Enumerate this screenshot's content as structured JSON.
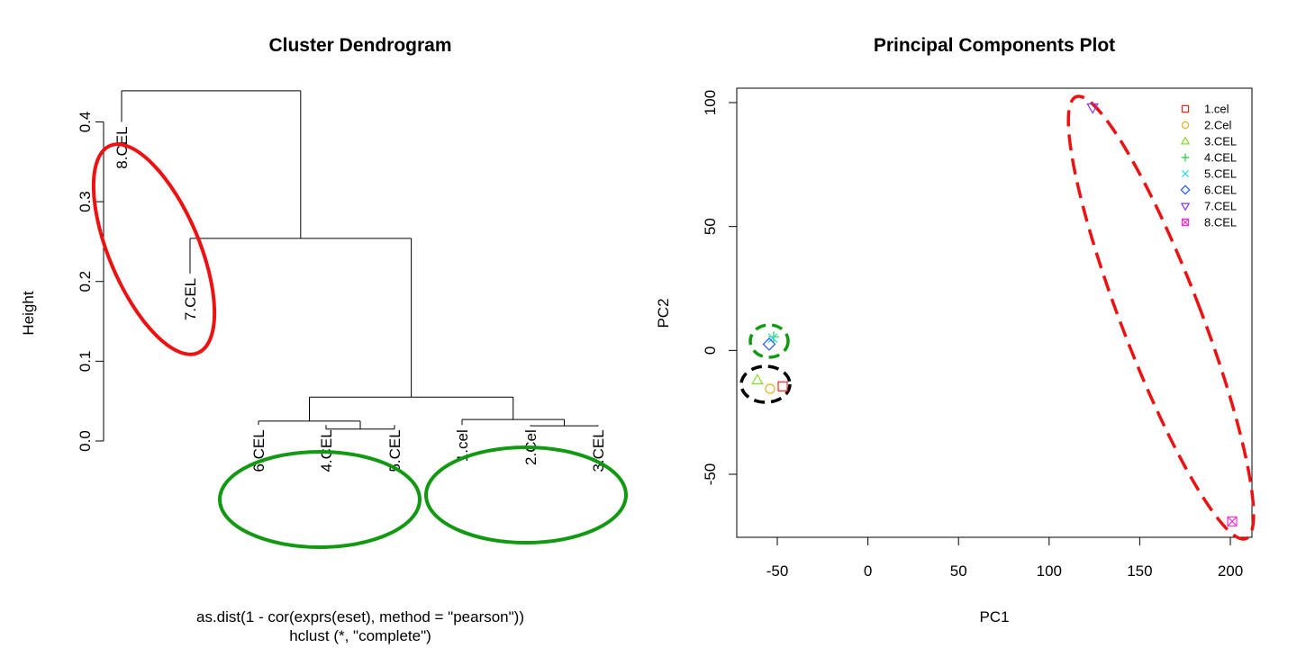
{
  "chart_data": [
    {
      "type": "dendrogram",
      "title": "Cluster Dendrogram",
      "ylabel": "Height",
      "xlabel": "as.dist(1 - cor(exprs(eset), method = \"pearson\"))",
      "sublabel": "hclust (*, \"complete\")",
      "ylim": [
        0,
        0.44
      ],
      "yticks": [
        0.0,
        0.1,
        0.2,
        0.3,
        0.4
      ],
      "ytick_labels": [
        "0.0",
        "0.1",
        "0.2",
        "0.3",
        "0.4"
      ],
      "leaves": [
        "8.CEL",
        "7.CEL",
        "6.CEL",
        "4.CEL",
        "5.CEL",
        "1.cel",
        "2.Cel",
        "3.CEL"
      ],
      "leaf_heights": [
        0.4,
        0.21,
        0.02,
        0.02,
        0.02,
        0.02,
        0.02,
        0.02
      ],
      "merges": [
        {
          "a": "4.CEL",
          "b": "5.CEL",
          "height": 0.015
        },
        {
          "a": "2.Cel",
          "b": "3.CEL",
          "height": 0.019
        },
        {
          "a": "6.CEL",
          "b": "(4.CEL,5.CEL)",
          "height": 0.025
        },
        {
          "a": "1.cel",
          "b": "(2.Cel,3.CEL)",
          "height": 0.027
        },
        {
          "a": "(6,4,5)",
          "b": "(1,2,3)",
          "height": 0.055
        },
        {
          "a": "7.CEL",
          "b": "(6,4,5,1,2,3)",
          "height": 0.254
        },
        {
          "a": "8.CEL",
          "b": "(7,6,4,5,1,2,3)",
          "height": 0.439
        }
      ],
      "annotations": [
        {
          "type": "ellipse",
          "color": "#ee1111",
          "style": "solid",
          "members": [
            "8.CEL",
            "7.CEL"
          ]
        },
        {
          "type": "ellipse",
          "color": "#119911",
          "style": "solid",
          "members": [
            "6.CEL",
            "4.CEL",
            "5.CEL"
          ]
        },
        {
          "type": "ellipse",
          "color": "#119911",
          "style": "solid",
          "members": [
            "1.cel",
            "2.Cel",
            "3.CEL"
          ]
        }
      ]
    },
    {
      "type": "scatter",
      "title": "Principal Components Plot",
      "xlabel": "PC1",
      "ylabel": "PC2",
      "xlim": [
        -72,
        210
      ],
      "ylim": [
        -75,
        106
      ],
      "xticks": [
        -50,
        0,
        50,
        100,
        150,
        200
      ],
      "yticks": [
        -50,
        0,
        50,
        100
      ],
      "legend_position": "top-right",
      "series": [
        {
          "name": "1.cel",
          "x": -47,
          "y": -14.5,
          "marker": "square",
          "color": "#ff2020"
        },
        {
          "name": "2.Cel",
          "x": -54,
          "y": -15.5,
          "marker": "circle",
          "color": "#e8b020"
        },
        {
          "name": "3.CEL",
          "x": -61,
          "y": -12,
          "marker": "triangle-up",
          "color": "#88dd22"
        },
        {
          "name": "4.CEL",
          "x": -52,
          "y": 5.5,
          "marker": "plus",
          "color": "#22cc44"
        },
        {
          "name": "5.CEL",
          "x": -52.5,
          "y": 5,
          "marker": "x",
          "color": "#22dddd"
        },
        {
          "name": "6.CEL",
          "x": -54.5,
          "y": 2.5,
          "marker": "diamond",
          "color": "#2255ff"
        },
        {
          "name": "7.CEL",
          "x": 124,
          "y": 98,
          "marker": "triangle-down",
          "color": "#8833ee"
        },
        {
          "name": "8.CEL",
          "x": 201,
          "y": -69,
          "marker": "square-x",
          "color": "#ee33cc"
        }
      ],
      "annotations": [
        {
          "type": "ellipse",
          "color": "#119911",
          "style": "dashed",
          "members": [
            "4.CEL",
            "5.CEL",
            "6.CEL"
          ]
        },
        {
          "type": "ellipse",
          "color": "#000000",
          "style": "dashed",
          "members": [
            "1.cel",
            "2.Cel",
            "3.CEL"
          ]
        },
        {
          "type": "ellipse",
          "color": "#ee1111",
          "style": "dashed",
          "members": [
            "7.CEL",
            "8.CEL"
          ]
        }
      ]
    }
  ]
}
